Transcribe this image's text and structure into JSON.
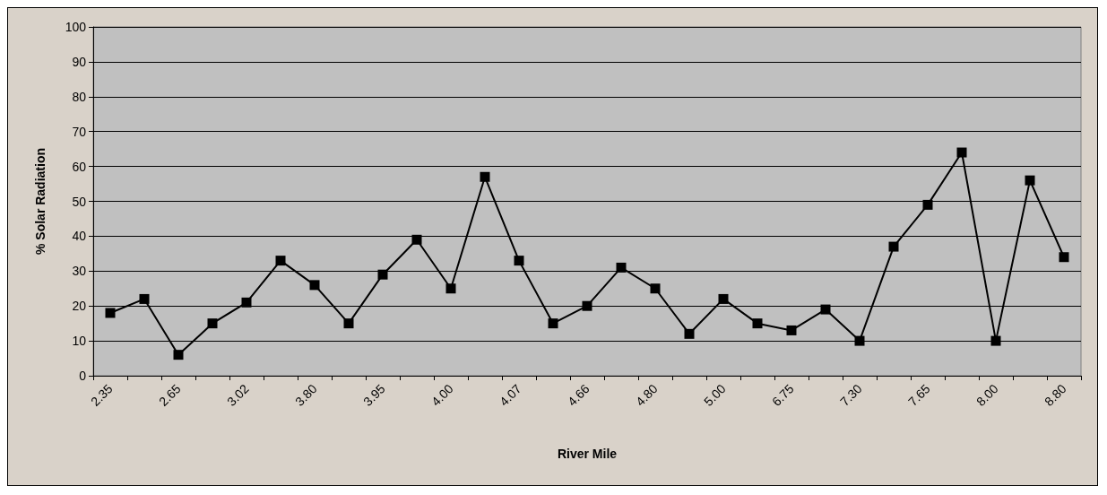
{
  "chart_data": {
    "type": "line",
    "xlabel": "River Mile",
    "ylabel": "% Solar Radiation",
    "categories": [
      "2.35",
      null,
      "2.65",
      null,
      "3.02",
      null,
      "3.80",
      null,
      "3.95",
      null,
      "4.00",
      null,
      "4.07",
      null,
      "4.66",
      null,
      "4.80",
      null,
      "5.00",
      null,
      "6.75",
      null,
      "7.30",
      null,
      "7.65",
      null,
      "8.00",
      null,
      "8.80"
    ],
    "series": [
      {
        "color": "#000000",
        "values": [
          18,
          22,
          6,
          15,
          21,
          33,
          26,
          15,
          29,
          39,
          25,
          57,
          33,
          15,
          20,
          31,
          25,
          12,
          22,
          15,
          13,
          19,
          10,
          37,
          49,
          64,
          10,
          56,
          34
        ]
      }
    ],
    "ylim": [
      0,
      100
    ],
    "yticks": [
      0,
      10,
      20,
      30,
      40,
      50,
      60,
      70,
      80,
      90,
      100
    ],
    "grid": "y",
    "marker": "square",
    "line_style": "solid"
  }
}
